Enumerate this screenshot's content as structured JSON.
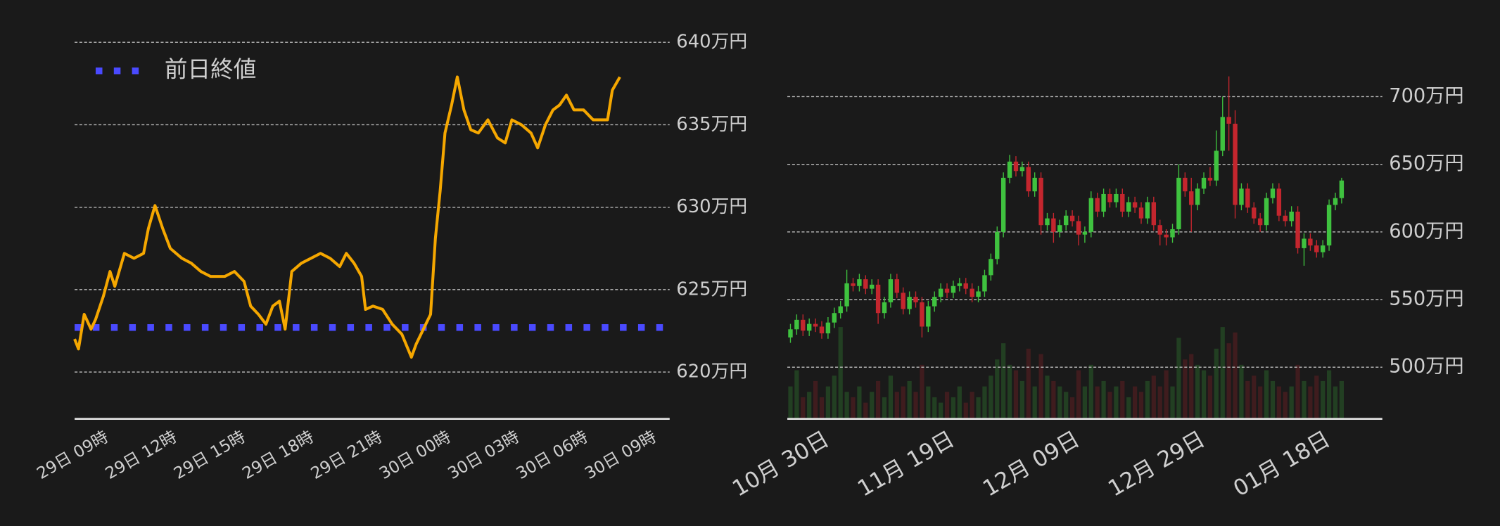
{
  "chart_data": [
    {
      "type": "line",
      "x": [
        7.74,
        7.91,
        8.16,
        8.46,
        8.66,
        9.0,
        9.29,
        9.5,
        9.92,
        10.34,
        10.76,
        10.97,
        11.26,
        11.6,
        11.93,
        12.44,
        12.85,
        13.27,
        13.69,
        14.32,
        14.74,
        15.16,
        15.45,
        15.79,
        16.12,
        16.42,
        16.71,
        16.96,
        17.25,
        17.67,
        18.09,
        18.51,
        18.93,
        19.35,
        19.64,
        19.98,
        20.31,
        20.48,
        20.81,
        21.23,
        21.65,
        22.07,
        22.49,
        22.7,
        23.12,
        23.33,
        23.54,
        23.75,
        23.96,
        24.25,
        24.5,
        24.79,
        25.09,
        25.42,
        25.84,
        26.26,
        26.6,
        26.89,
        27.31,
        27.73,
        28.02,
        28.36,
        28.69,
        28.98,
        29.28,
        29.61,
        30.03,
        30.45,
        31.08,
        31.29,
        31.62
      ],
      "values": [
        622.0,
        621.4,
        623.5,
        622.6,
        623.2,
        624.6,
        626.1,
        625.2,
        627.2,
        626.9,
        627.2,
        628.7,
        630.1,
        628.7,
        627.5,
        626.9,
        626.6,
        626.1,
        625.8,
        625.8,
        626.1,
        625.5,
        624.0,
        623.5,
        622.9,
        624.0,
        624.3,
        622.6,
        626.1,
        626.6,
        626.9,
        627.2,
        626.9,
        626.4,
        627.2,
        626.6,
        625.8,
        623.8,
        624.0,
        623.8,
        622.9,
        622.3,
        620.9,
        621.7,
        622.9,
        623.5,
        628.1,
        631.0,
        634.5,
        636.2,
        637.9,
        635.9,
        634.7,
        634.5,
        635.3,
        634.2,
        633.9,
        635.3,
        635.0,
        634.5,
        633.6,
        635.0,
        635.9,
        636.2,
        636.8,
        635.9,
        635.9,
        635.3,
        635.3,
        637.1,
        637.9
      ],
      "color": "#f5a700",
      "reference_line": {
        "name": "前日終値",
        "value": 622.7,
        "color": "#4a4aff"
      },
      "legend": "upper left",
      "xlim": [
        7.74,
        33.8
      ],
      "xticks": [
        {
          "value": 9,
          "label": "29日 09時"
        },
        {
          "value": 12,
          "label": "29日 12時"
        },
        {
          "value": 15,
          "label": "29日 15時"
        },
        {
          "value": 18,
          "label": "29日 18時"
        },
        {
          "value": 21,
          "label": "29日 21時"
        },
        {
          "value": 24,
          "label": "30日 00時"
        },
        {
          "value": 27,
          "label": "30日 03時"
        },
        {
          "value": 30,
          "label": "30日 06時"
        },
        {
          "value": 33,
          "label": "30日 09時"
        }
      ],
      "ylim": [
        617.16,
        641
      ],
      "yticks": [
        {
          "value": 620,
          "label": "620万円"
        },
        {
          "value": 625,
          "label": "625万円"
        },
        {
          "value": 630,
          "label": "630万円"
        },
        {
          "value": 635,
          "label": "635万円"
        },
        {
          "value": 640,
          "label": "640万円"
        }
      ],
      "grid": true
    },
    {
      "type": "candlestick",
      "categories": [
        null,
        null,
        null,
        null,
        null,
        "10月 30日",
        null,
        null,
        null,
        null,
        null,
        null,
        null,
        null,
        null,
        null,
        null,
        null,
        null,
        null,
        null,
        null,
        null,
        null,
        null,
        "11月 19日",
        null,
        null,
        null,
        null,
        null,
        null,
        null,
        null,
        null,
        null,
        null,
        null,
        null,
        null,
        null,
        null,
        null,
        null,
        null,
        "12月 09日",
        null,
        null,
        null,
        null,
        null,
        null,
        null,
        null,
        null,
        null,
        null,
        null,
        null,
        null,
        null,
        null,
        null,
        null,
        null,
        "12月 29日",
        null,
        null,
        null,
        null,
        null,
        null,
        null,
        null,
        null,
        null,
        null,
        null,
        null,
        null,
        null,
        null,
        null,
        null,
        null,
        "01月 18日",
        null,
        null,
        null
      ],
      "open": [
        522,
        528,
        535,
        527,
        532,
        530,
        525,
        533,
        540,
        545,
        562,
        560,
        565,
        558,
        561,
        540,
        548,
        565,
        555,
        543,
        552,
        548,
        530,
        545,
        552,
        558,
        555,
        560,
        562,
        558,
        552,
        556,
        568,
        580,
        600,
        640,
        652,
        645,
        648,
        630,
        640,
        605,
        610,
        600,
        605,
        612,
        608,
        598,
        600,
        625,
        615,
        628,
        622,
        628,
        615,
        622,
        618,
        610,
        622,
        605,
        598,
        596,
        602,
        640,
        630,
        620,
        632,
        640,
        638,
        660,
        685,
        680,
        620,
        632,
        618,
        610,
        605,
        625,
        632,
        612,
        608,
        615,
        588,
        595,
        590,
        585,
        590,
        620,
        625
      ],
      "high": [
        532,
        539,
        539,
        536,
        536,
        534,
        537,
        544,
        549,
        572,
        566,
        569,
        568,
        565,
        565,
        552,
        569,
        569,
        559,
        556,
        556,
        552,
        549,
        556,
        562,
        562,
        564,
        566,
        566,
        562,
        560,
        572,
        584,
        604,
        644,
        657,
        656,
        652,
        652,
        644,
        644,
        614,
        614,
        609,
        616,
        616,
        612,
        604,
        630,
        629,
        632,
        632,
        632,
        632,
        626,
        626,
        622,
        626,
        626,
        609,
        602,
        606,
        650,
        644,
        640,
        636,
        644,
        648,
        675,
        700,
        715,
        690,
        636,
        636,
        622,
        614,
        629,
        636,
        636,
        616,
        619,
        619,
        599,
        599,
        594,
        594,
        624,
        629,
        640
      ],
      "low": [
        518,
        524,
        523,
        523,
        526,
        521,
        521,
        529,
        536,
        541,
        556,
        556,
        554,
        554,
        532,
        536,
        544,
        551,
        539,
        539,
        544,
        522,
        526,
        541,
        548,
        551,
        551,
        556,
        554,
        548,
        548,
        552,
        564,
        576,
        596,
        636,
        641,
        641,
        626,
        626,
        598,
        601,
        592,
        596,
        601,
        604,
        590,
        592,
        596,
        611,
        611,
        618,
        618,
        611,
        611,
        614,
        606,
        606,
        601,
        590,
        590,
        592,
        598,
        626,
        600,
        616,
        628,
        634,
        634,
        656,
        660,
        610,
        616,
        614,
        606,
        600,
        601,
        621,
        608,
        604,
        604,
        584,
        575,
        586,
        581,
        581,
        586,
        616,
        621
      ],
      "close": [
        528,
        535,
        527,
        532,
        530,
        525,
        533,
        540,
        545,
        562,
        560,
        565,
        558,
        561,
        540,
        548,
        565,
        555,
        543,
        552,
        548,
        530,
        545,
        552,
        558,
        555,
        560,
        562,
        558,
        552,
        556,
        568,
        580,
        600,
        640,
        652,
        645,
        648,
        630,
        640,
        605,
        610,
        600,
        605,
        612,
        608,
        598,
        600,
        625,
        615,
        628,
        622,
        628,
        615,
        622,
        618,
        610,
        622,
        605,
        598,
        596,
        602,
        640,
        630,
        620,
        632,
        640,
        638,
        660,
        685,
        680,
        620,
        632,
        618,
        610,
        605,
        625,
        632,
        612,
        608,
        615,
        588,
        595,
        590,
        585,
        590,
        620,
        625,
        638
      ],
      "volume": [
        30,
        45,
        20,
        25,
        35,
        20,
        30,
        40,
        85,
        25,
        20,
        30,
        15,
        25,
        35,
        20,
        40,
        25,
        30,
        35,
        25,
        50,
        30,
        20,
        15,
        25,
        20,
        30,
        15,
        25,
        20,
        30,
        40,
        55,
        70,
        50,
        45,
        35,
        65,
        30,
        60,
        40,
        35,
        30,
        25,
        20,
        45,
        30,
        50,
        30,
        35,
        25,
        30,
        35,
        20,
        30,
        25,
        35,
        40,
        30,
        45,
        30,
        75,
        55,
        60,
        50,
        45,
        40,
        65,
        85,
        70,
        80,
        50,
        35,
        40,
        30,
        45,
        35,
        30,
        25,
        30,
        50,
        35,
        30,
        40,
        35,
        45,
        30,
        35
      ],
      "up_color": "#3fc23f",
      "down_color": "#c4262e",
      "ylim": [
        461.8,
        716
      ],
      "yticks": [
        {
          "value": 500,
          "label": "500万円"
        },
        {
          "value": 550,
          "label": "550万円"
        },
        {
          "value": 600,
          "label": "600万円"
        },
        {
          "value": 650,
          "label": "650万円"
        },
        {
          "value": 700,
          "label": "700万円"
        }
      ],
      "grid": true
    }
  ]
}
